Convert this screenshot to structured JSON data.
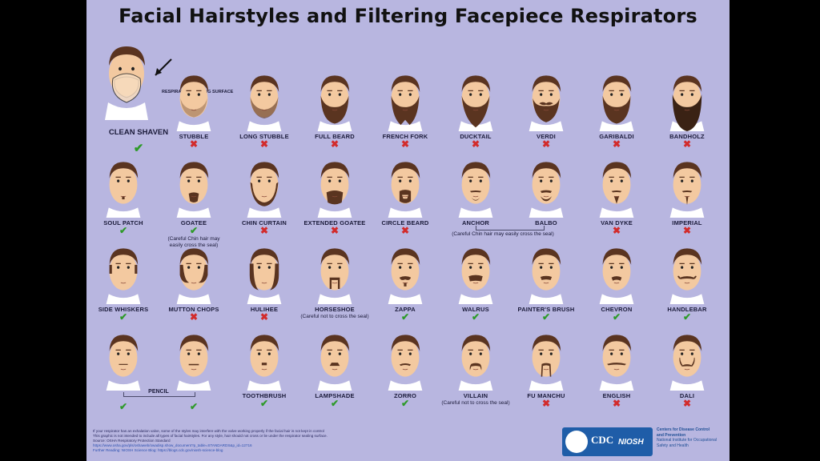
{
  "title": "Facial Hairstyles and Filtering Facepiece Respirators",
  "clean_shaven": {
    "label": "CLEAN SHAVEN",
    "sealing_label": "RESPIRATOR SEALING SURFACE",
    "status": "ok"
  },
  "rows": [
    [
      {
        "label": "STUBBLE",
        "status": "no",
        "style": "stubble"
      },
      {
        "label": "LONG STUBBLE",
        "status": "no",
        "style": "long-stubble"
      },
      {
        "label": "FULL BEARD",
        "status": "no",
        "style": "full"
      },
      {
        "label": "FRENCH FORK",
        "status": "no",
        "style": "fork"
      },
      {
        "label": "DUCKTAIL",
        "status": "no",
        "style": "ducktail"
      },
      {
        "label": "VERDI",
        "status": "no",
        "style": "verdi"
      },
      {
        "label": "GARIBALDI",
        "status": "no",
        "style": "full"
      },
      {
        "label": "BANDHOLZ",
        "status": "no",
        "style": "bandholz"
      }
    ],
    [
      {
        "label": "SOUL PATCH",
        "status": "ok",
        "style": "soul"
      },
      {
        "label": "GOATEE",
        "status": "ok",
        "style": "goatee",
        "note": "(Careful Chin hair may easily cross the seal)"
      },
      {
        "label": "CHIN CURTAIN",
        "status": "no",
        "style": "curtain"
      },
      {
        "label": "EXTENDED GOATEE",
        "status": "no",
        "style": "ext-goatee"
      },
      {
        "label": "CIRCLE BEARD",
        "status": "no",
        "style": "circle"
      },
      {
        "label": "ANCHOR",
        "status": "",
        "style": "anchor"
      },
      {
        "label": "BALBO",
        "status": "",
        "style": "balbo"
      },
      {
        "label": "VAN DYKE",
        "status": "no",
        "style": "vandyke"
      },
      {
        "label": "IMPERIAL",
        "status": "no",
        "style": "imperial"
      }
    ],
    [
      {
        "label": "SIDE WHISKERS",
        "status": "ok",
        "style": "whiskers"
      },
      {
        "label": "MUTTON CHOPS",
        "status": "no",
        "style": "mutton"
      },
      {
        "label": "HULIHEE",
        "status": "no",
        "style": "hulihee"
      },
      {
        "label": "HORSESHOE",
        "status": "",
        "style": "horseshoe",
        "note": "(Careful not to cross the seal)"
      },
      {
        "label": "ZAPPA",
        "status": "ok",
        "style": "zappa"
      },
      {
        "label": "WALRUS",
        "status": "ok",
        "style": "walrus"
      },
      {
        "label": "PAINTER'S BRUSH",
        "status": "ok",
        "style": "painter"
      },
      {
        "label": "CHEVRON",
        "status": "ok",
        "style": "chevron"
      },
      {
        "label": "HANDLEBAR",
        "status": "ok",
        "style": "handlebar"
      }
    ],
    [
      {
        "label": "",
        "status": "ok",
        "style": "pencil"
      },
      {
        "label": "",
        "status": "ok",
        "style": "pencil2"
      },
      {
        "label": "TOOTHBRUSH",
        "status": "ok",
        "style": "toothbrush"
      },
      {
        "label": "LAMPSHADE",
        "status": "ok",
        "style": "lampshade"
      },
      {
        "label": "ZORRO",
        "status": "ok",
        "style": "zorro"
      },
      {
        "label": "VILLAIN",
        "status": "",
        "style": "villain",
        "note": "(Careful not to cross the seal)"
      },
      {
        "label": "FU MANCHU",
        "status": "no",
        "style": "fumanchu"
      },
      {
        "label": "ENGLISH",
        "status": "no",
        "style": "english"
      },
      {
        "label": "DALI",
        "status": "no",
        "style": "dali"
      }
    ]
  ],
  "groups": {
    "anchor_balbo_note": "(Careful Chin hair may easily cross the seal)",
    "pencil_label": "PENCIL"
  },
  "footer": {
    "lines": [
      "If your respirator has an exhalation valve, some of the styles may interfere with the valve working properly if the facial hair is not kept in control",
      "This graphic is not intended to include all types of facial hairstyles. For any style, hair should not cross or lie under the respirator sealing surface.",
      "Source: OSHA Respiratory Protection Standard",
      "https://www.osha.gov/pls/oshaweb/owadisp.show_document?p_table=STANDARDS&p_id=12716",
      "Further Reading: NIOSH Science Blog: https://blogs.cdc.gov/niosh-science-blog"
    ]
  },
  "logo": {
    "cdc": "CDC",
    "niosh": "NIOSH"
  },
  "agency_lines": [
    "Centers for Disease Control",
    "and Prevention",
    "National Institute for Occupational",
    "Safety and Health"
  ],
  "marks": {
    "ok": "✔",
    "no": "✖"
  },
  "colors": {
    "background": "#b8b6e0",
    "skin": "#f3c9a0",
    "hair": "#5a3420",
    "ok": "#2e9a2a",
    "no": "#d22b2b",
    "logo": "#1f5da8"
  }
}
